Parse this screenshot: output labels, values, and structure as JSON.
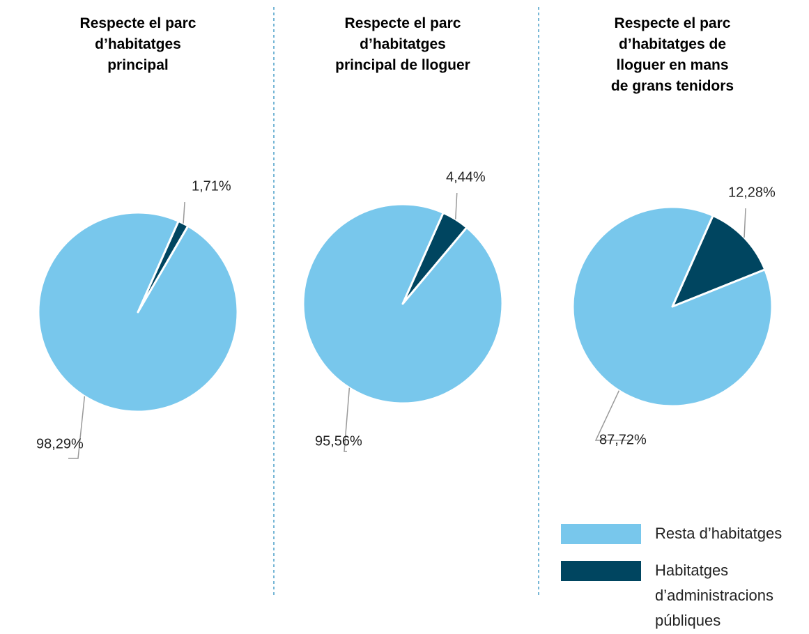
{
  "legend": [
    {
      "name": "Resta d’habitatges",
      "color": "#78c7ec"
    },
    {
      "name": "Habitatges\nd’administracions\npúbliques",
      "color": "#004560"
    }
  ],
  "chart_data": [
    {
      "type": "pie",
      "title": "Respecte el parc\nd’habitatges\nprincipal",
      "values": [
        98.29,
        1.71
      ],
      "value_labels": [
        "98,29%",
        "1,71%"
      ]
    },
    {
      "type": "pie",
      "title": "Respecte el parc\nd’habitatges\nprincipal de lloguer",
      "values": [
        95.56,
        4.44
      ],
      "value_labels": [
        "95,56%",
        "4,44%"
      ]
    },
    {
      "type": "pie",
      "title": "Respecte el parc\nd’habitatges de\nlloguer en mans\nde grans tenidors",
      "values": [
        87.72,
        12.28
      ],
      "value_labels": [
        "87,72%",
        "12,28%"
      ]
    }
  ]
}
